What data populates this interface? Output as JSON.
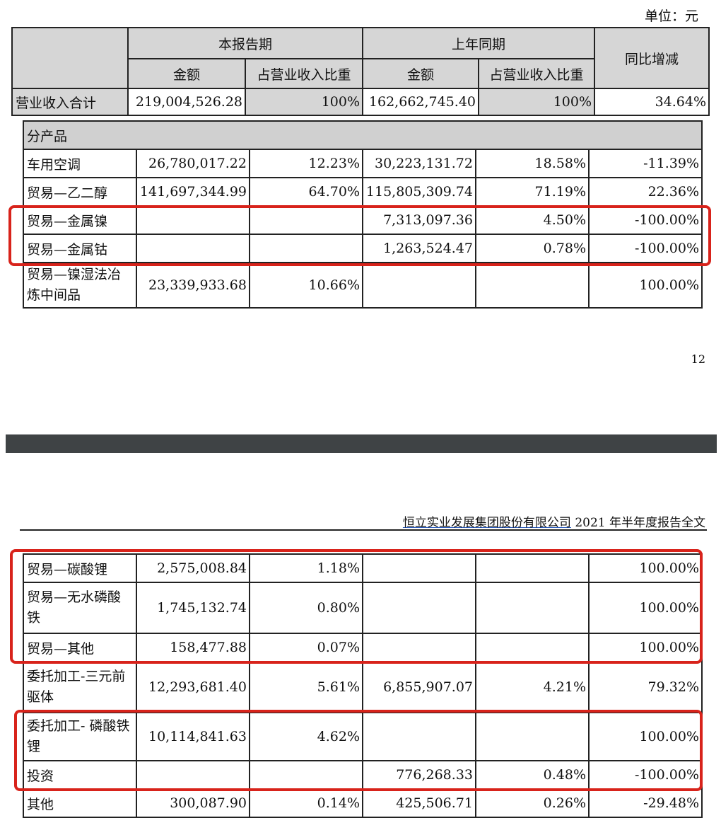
{
  "unit_label": "单位：元",
  "top_header": {
    "current_period": "本报告期",
    "prior_period": "上年同期",
    "yoy": "同比增减",
    "amount": "金额",
    "ratio": "占营业收入比重"
  },
  "total_row": {
    "label": "营业收入合计",
    "cur_amount": "219,004,526.28",
    "cur_ratio": "100%",
    "prev_amount": "162,662,745.40",
    "prev_ratio": "100%",
    "yoy": "34.64%"
  },
  "section_label": "分产品",
  "rows_page1": [
    {
      "label": "车用空调",
      "cur_amount": "26,780,017.22",
      "cur_ratio": "12.23%",
      "prev_amount": "30,223,131.72",
      "prev_ratio": "18.58%",
      "yoy": "-11.39%"
    },
    {
      "label": "贸易—乙二醇",
      "cur_amount": "141,697,344.99",
      "cur_ratio": "64.70%",
      "prev_amount": "115,805,309.74",
      "prev_ratio": "71.19%",
      "yoy": "22.36%"
    },
    {
      "label": "贸易—金属镍",
      "cur_amount": "",
      "cur_ratio": "",
      "prev_amount": "7,313,097.36",
      "prev_ratio": "4.50%",
      "yoy": "-100.00%"
    },
    {
      "label": "贸易—金属钴",
      "cur_amount": "",
      "cur_ratio": "",
      "prev_amount": "1,263,524.47",
      "prev_ratio": "0.78%",
      "yoy": "-100.00%"
    },
    {
      "label": "贸易—镍湿法冶炼中间品",
      "cur_amount": "23,339,933.68",
      "cur_ratio": "10.66%",
      "prev_amount": "",
      "prev_ratio": "",
      "yoy": "100.00%"
    }
  ],
  "page_number": "12",
  "page2_header": {
    "company": "恒立实业发展集团股份有限公司",
    "rest": " 2021 年半年度报告全文"
  },
  "rows_page2": [
    {
      "label": "贸易—碳酸锂",
      "cur_amount": "2,575,008.84",
      "cur_ratio": "1.18%",
      "prev_amount": "",
      "prev_ratio": "",
      "yoy": "100.00%"
    },
    {
      "label": "贸易—无水磷酸铁",
      "cur_amount": "1,745,132.74",
      "cur_ratio": "0.80%",
      "prev_amount": "",
      "prev_ratio": "",
      "yoy": "100.00%"
    },
    {
      "label": "贸易—其他",
      "cur_amount": "158,477.88",
      "cur_ratio": "0.07%",
      "prev_amount": "",
      "prev_ratio": "",
      "yoy": "100.00%"
    },
    {
      "label": "委托加工-三元前驱体",
      "cur_amount": "12,293,681.40",
      "cur_ratio": "5.61%",
      "prev_amount": "6,855,907.07",
      "prev_ratio": "4.21%",
      "yoy": "79.32%"
    },
    {
      "label": "委托加工- 磷酸铁锂",
      "cur_amount": "10,114,841.63",
      "cur_ratio": "4.62%",
      "prev_amount": "",
      "prev_ratio": "",
      "yoy": "100.00%"
    },
    {
      "label": "投资",
      "cur_amount": "",
      "cur_ratio": "",
      "prev_amount": "776,268.33",
      "prev_ratio": "0.48%",
      "yoy": "-100.00%"
    },
    {
      "label": "其他",
      "cur_amount": "300,087.90",
      "cur_ratio": "0.14%",
      "prev_amount": "425,506.71",
      "prev_ratio": "0.26%",
      "yoy": "-29.48%"
    }
  ],
  "highlight_color": "#d8231b"
}
